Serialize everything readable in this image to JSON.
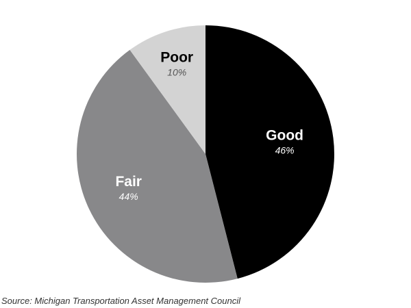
{
  "chart_data": {
    "type": "pie",
    "title": "",
    "categories": [
      "Good",
      "Fair",
      "Poor"
    ],
    "values": [
      46,
      44,
      10
    ],
    "labels": [
      "46%",
      "44%",
      "10%"
    ],
    "colors": [
      "#000000",
      "#88888a",
      "#d3d3d3"
    ],
    "label_colors": [
      "#ffffff",
      "#ffffff",
      "#000000"
    ],
    "value_label_colors": [
      "#ffffff",
      "#ffffff",
      "#555555"
    ],
    "start_angle_deg": 0,
    "direction": "clockwise",
    "legend": "none",
    "source": "Source: Michigan Transportation Asset Management Council"
  }
}
